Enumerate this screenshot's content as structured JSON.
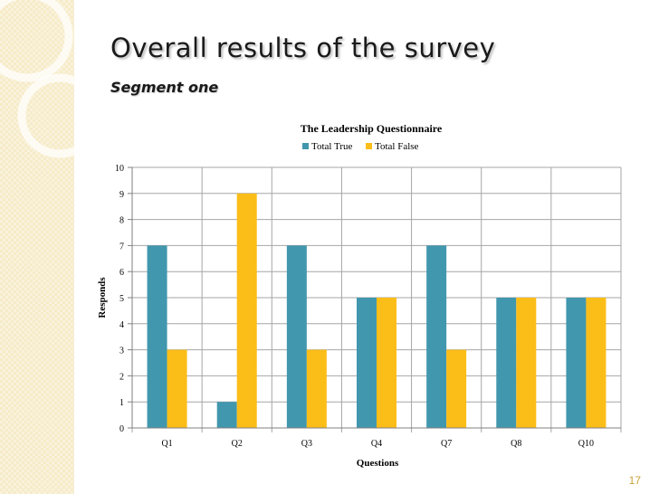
{
  "slide": {
    "title": "Overall results of the survey",
    "subtitle": "Segment one",
    "page_number": "17"
  },
  "colors": {
    "series_true": "#4197ae",
    "series_false": "#fbbd17",
    "side_panel": "#f6ebc8"
  },
  "chart_data": {
    "type": "bar",
    "title": "The Leadership Questionnaire",
    "xlabel": "Questions",
    "ylabel": "Responds",
    "categories": [
      "Q1",
      "Q2",
      "Q3",
      "Q4",
      "Q7",
      "Q8",
      "Q10"
    ],
    "series": [
      {
        "name": "Total True",
        "values": [
          7,
          1,
          7,
          5,
          7,
          5,
          5
        ]
      },
      {
        "name": "Total False",
        "values": [
          3,
          9,
          3,
          5,
          3,
          5,
          5
        ]
      }
    ],
    "ylim": [
      0,
      10
    ],
    "yticks": [
      0,
      1,
      2,
      3,
      4,
      5,
      6,
      7,
      8,
      9,
      10
    ],
    "grid": true,
    "legend_position": "top"
  }
}
